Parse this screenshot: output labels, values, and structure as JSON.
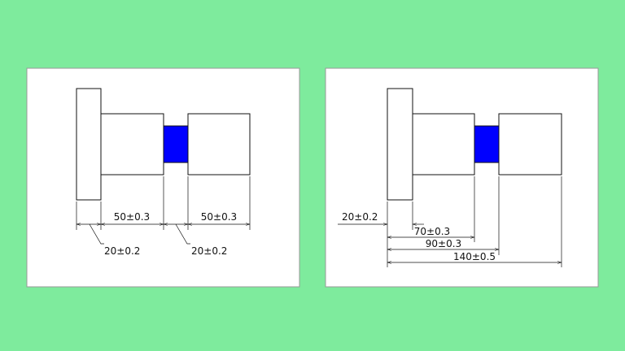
{
  "left": {
    "dimensions": [
      "50±0.3",
      "50±0.3",
      "20±0.2",
      "20±0.2"
    ]
  },
  "right": {
    "dimensions": [
      "20±0.2",
      "70±0.3",
      "90±0.3",
      "140±0.5"
    ]
  }
}
